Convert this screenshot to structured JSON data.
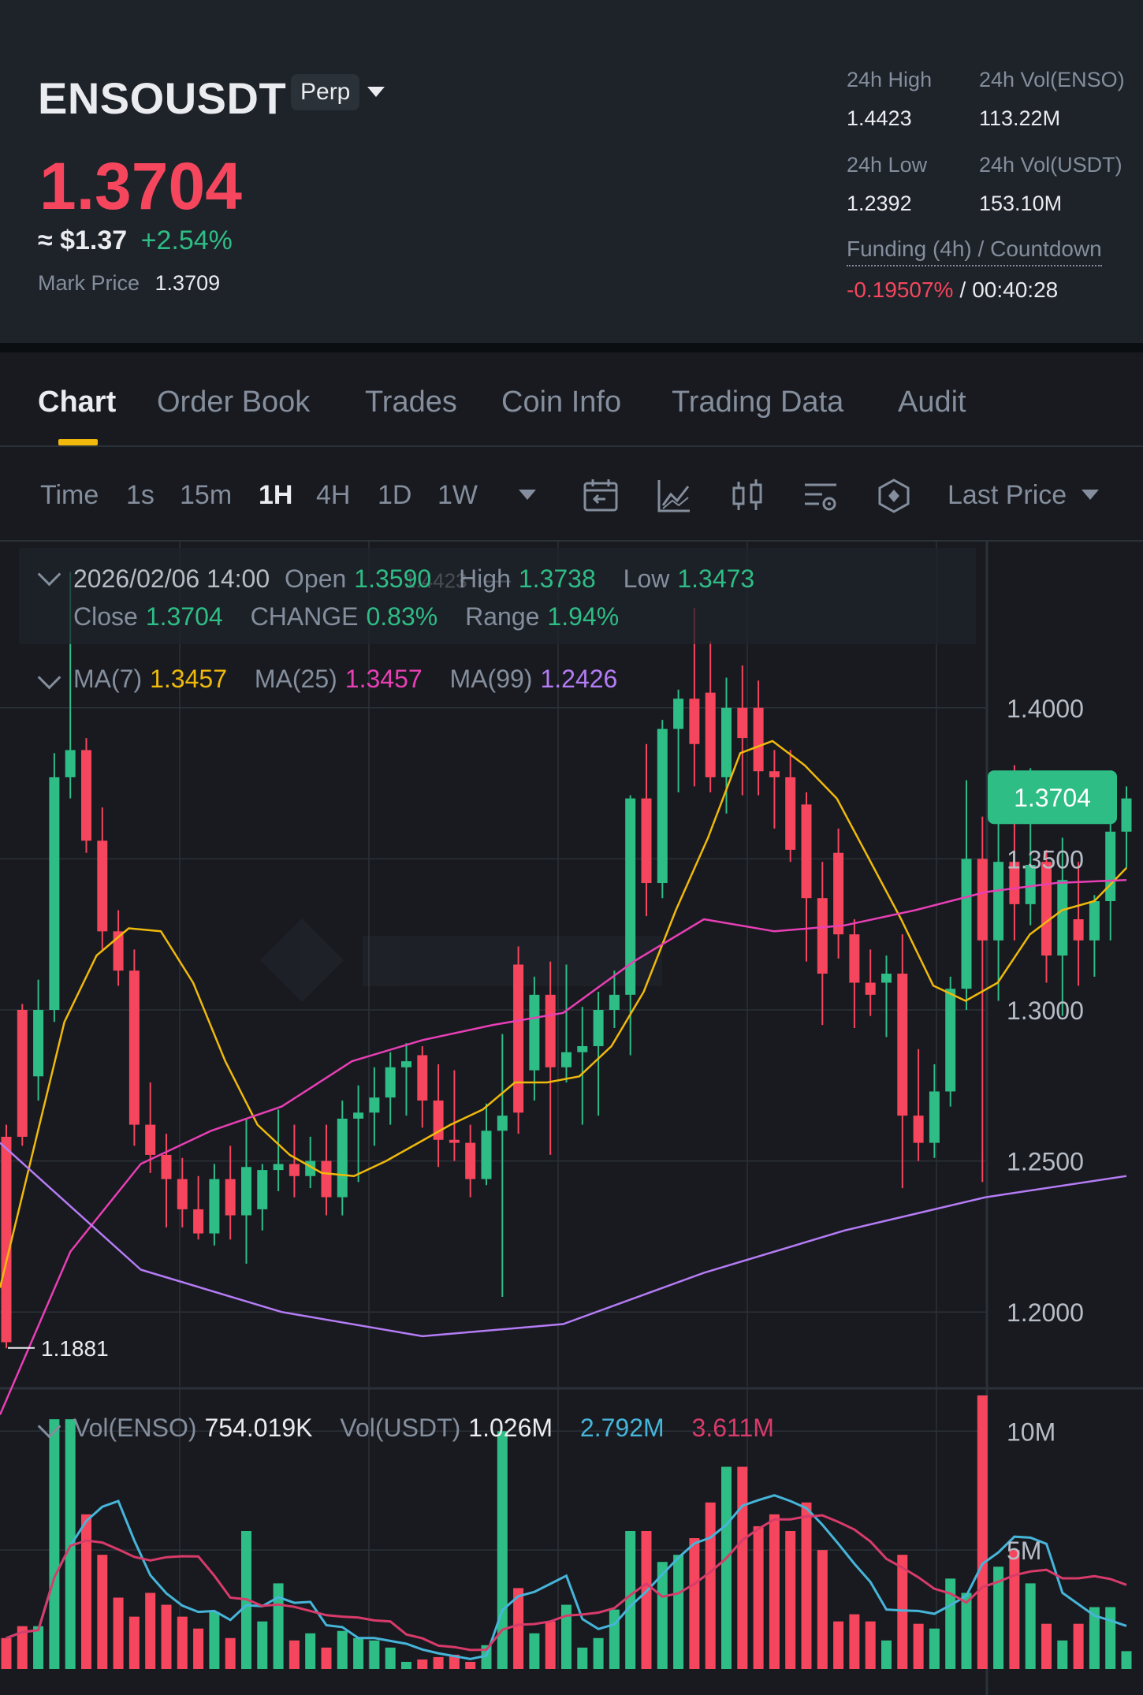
{
  "header": {
    "symbol": "ENSOUSDT",
    "contract_type": "Perp",
    "last_price": "1.3704",
    "usd_price": "≈ $1.37",
    "change_pct": "+2.54%",
    "mark_price_label": "Mark Price",
    "mark_price": "1.3709",
    "stats": {
      "high_label": "24h High",
      "high": "1.4423",
      "vol_base_label": "24h Vol(ENSO)",
      "vol_base": "113.22M",
      "low_label": "24h Low",
      "low": "1.2392",
      "vol_quote_label": "24h Vol(USDT)",
      "vol_quote": "153.10M"
    },
    "funding_label": "Funding (4h) / Countdown",
    "funding_rate": "-0.19507%",
    "funding_sep": "/",
    "countdown": "00:40:28"
  },
  "tabs": [
    {
      "label": "Chart",
      "active": true
    },
    {
      "label": "Order Book"
    },
    {
      "label": "Trades"
    },
    {
      "label": "Coin Info"
    },
    {
      "label": "Trading Data"
    },
    {
      "label": "Audit"
    }
  ],
  "toolbar": {
    "timeframes": [
      "Time",
      "1s",
      "15m",
      "1H",
      "4H",
      "1D",
      "1W"
    ],
    "active_timeframe": "1H",
    "icons": [
      "calendar-icon",
      "indicator-icon",
      "candle-type-icon",
      "chart-settings-icon",
      "depth-icon"
    ],
    "price_type": "Last Price"
  },
  "ohlc": {
    "datetime": "2026/02/06 14:00",
    "open_label": "Open",
    "open": "1.3590",
    "high_label": "High",
    "high": "1.3738",
    "low_label": "Low",
    "low": "1.3473",
    "close_label": "Close",
    "close": "1.3704",
    "change_label": "CHANGE",
    "change": "0.83%",
    "range_label": "Range",
    "range": "1.94%"
  },
  "ma": {
    "ma7_label": "MA(7)",
    "ma7": "1.3457",
    "ma25_label": "MA(25)",
    "ma25": "1.3457",
    "ma99_label": "MA(99)",
    "ma99": "1.2426"
  },
  "volume_legend": {
    "vol_base_label": "Vol(ENSO)",
    "vol_base": "754.019K",
    "vol_quote_label": "Vol(USDT)",
    "vol_quote": "1.026M",
    "vol_ma5": "2.792M",
    "vol_ma10": "3.611M"
  },
  "colors": {
    "up": "#2ebd85",
    "down": "#f6465d",
    "ma7": "#f0b90b",
    "ma25": "#e83fb4",
    "ma99": "#b57cf5",
    "vol_ma5": "#46b5d9",
    "vol_ma10": "#d83b6a",
    "accent": "#f0b90b"
  },
  "chart_data": {
    "type": "candlestick",
    "price_axis_ticks": [
      "1.4000",
      "1.3500",
      "1.3000",
      "1.2500",
      "1.2000"
    ],
    "price_range": [
      1.175,
      1.455
    ],
    "high_marker": "1.4423",
    "low_marker": "1.1881",
    "current_price_tag": "1.3704",
    "volume_axis_ticks": [
      "10M",
      "5M"
    ],
    "volume_range": [
      0,
      11.5
    ],
    "candles": [
      {
        "o": 1.258,
        "h": 1.262,
        "l": 1.188,
        "c": 1.19,
        "v": 1.3
      },
      {
        "o": 1.3,
        "h": 1.302,
        "l": 1.255,
        "c": 1.258,
        "v": 1.8
      },
      {
        "o": 1.278,
        "h": 1.31,
        "l": 1.27,
        "c": 1.3,
        "v": 1.8
      },
      {
        "o": 1.3,
        "h": 1.385,
        "l": 1.296,
        "c": 1.377,
        "v": 10.5
      },
      {
        "o": 1.377,
        "h": 1.445,
        "l": 1.37,
        "c": 1.386,
        "v": 10.5
      },
      {
        "o": 1.386,
        "h": 1.39,
        "l": 1.352,
        "c": 1.356,
        "v": 6.5
      },
      {
        "o": 1.356,
        "h": 1.367,
        "l": 1.32,
        "c": 1.326,
        "v": 4.8
      },
      {
        "o": 1.326,
        "h": 1.333,
        "l": 1.308,
        "c": 1.313,
        "v": 3.0
      },
      {
        "o": 1.313,
        "h": 1.32,
        "l": 1.255,
        "c": 1.262,
        "v": 2.2
      },
      {
        "o": 1.262,
        "h": 1.276,
        "l": 1.246,
        "c": 1.252,
        "v": 3.2
      },
      {
        "o": 1.252,
        "h": 1.259,
        "l": 1.228,
        "c": 1.244,
        "v": 2.7
      },
      {
        "o": 1.244,
        "h": 1.251,
        "l": 1.228,
        "c": 1.234,
        "v": 2.2
      },
      {
        "o": 1.234,
        "h": 1.245,
        "l": 1.224,
        "c": 1.226,
        "v": 1.7
      },
      {
        "o": 1.226,
        "h": 1.249,
        "l": 1.222,
        "c": 1.244,
        "v": 2.4
      },
      {
        "o": 1.244,
        "h": 1.255,
        "l": 1.224,
        "c": 1.232,
        "v": 1.3
      },
      {
        "o": 1.232,
        "h": 1.264,
        "l": 1.216,
        "c": 1.248,
        "v": 5.8
      },
      {
        "o": 1.234,
        "h": 1.249,
        "l": 1.227,
        "c": 1.247,
        "v": 2.0
      },
      {
        "o": 1.247,
        "h": 1.267,
        "l": 1.24,
        "c": 1.249,
        "v": 3.6
      },
      {
        "o": 1.249,
        "h": 1.262,
        "l": 1.238,
        "c": 1.245,
        "v": 1.2
      },
      {
        "o": 1.245,
        "h": 1.258,
        "l": 1.241,
        "c": 1.25,
        "v": 1.5
      },
      {
        "o": 1.25,
        "h": 1.262,
        "l": 1.232,
        "c": 1.238,
        "v": 0.9
      },
      {
        "o": 1.238,
        "h": 1.27,
        "l": 1.232,
        "c": 1.264,
        "v": 1.6
      },
      {
        "o": 1.264,
        "h": 1.275,
        "l": 1.243,
        "c": 1.266,
        "v": 1.3
      },
      {
        "o": 1.266,
        "h": 1.281,
        "l": 1.255,
        "c": 1.271,
        "v": 1.2
      },
      {
        "o": 1.271,
        "h": 1.286,
        "l": 1.262,
        "c": 1.281,
        "v": 0.9
      },
      {
        "o": 1.281,
        "h": 1.289,
        "l": 1.265,
        "c": 1.283,
        "v": 0.3
      },
      {
        "o": 1.285,
        "h": 1.288,
        "l": 1.261,
        "c": 1.27,
        "v": 0.4
      },
      {
        "o": 1.27,
        "h": 1.282,
        "l": 1.248,
        "c": 1.257,
        "v": 0.5
      },
      {
        "o": 1.257,
        "h": 1.28,
        "l": 1.25,
        "c": 1.256,
        "v": 0.6
      },
      {
        "o": 1.256,
        "h": 1.262,
        "l": 1.238,
        "c": 1.244,
        "v": 0.3
      },
      {
        "o": 1.244,
        "h": 1.269,
        "l": 1.242,
        "c": 1.26,
        "v": 1.0
      },
      {
        "o": 1.26,
        "h": 1.292,
        "l": 1.205,
        "c": 1.265,
        "v": 10.0
      },
      {
        "o": 1.315,
        "h": 1.321,
        "l": 1.259,
        "c": 1.266,
        "v": 3.4
      },
      {
        "o": 1.28,
        "h": 1.311,
        "l": 1.27,
        "c": 1.305,
        "v": 1.5
      },
      {
        "o": 1.305,
        "h": 1.316,
        "l": 1.252,
        "c": 1.281,
        "v": 2.0
      },
      {
        "o": 1.281,
        "h": 1.315,
        "l": 1.276,
        "c": 1.286,
        "v": 2.7
      },
      {
        "o": 1.286,
        "h": 1.301,
        "l": 1.262,
        "c": 1.288,
        "v": 0.9
      },
      {
        "o": 1.288,
        "h": 1.306,
        "l": 1.265,
        "c": 1.3,
        "v": 1.3
      },
      {
        "o": 1.3,
        "h": 1.313,
        "l": 1.294,
        "c": 1.305,
        "v": 2.5
      },
      {
        "o": 1.305,
        "h": 1.371,
        "l": 1.285,
        "c": 1.37,
        "v": 5.8
      },
      {
        "o": 1.37,
        "h": 1.388,
        "l": 1.331,
        "c": 1.342,
        "v": 5.8
      },
      {
        "o": 1.342,
        "h": 1.396,
        "l": 1.337,
        "c": 1.393,
        "v": 4.5
      },
      {
        "o": 1.393,
        "h": 1.406,
        "l": 1.372,
        "c": 1.403,
        "v": 4.8
      },
      {
        "o": 1.403,
        "h": 1.433,
        "l": 1.374,
        "c": 1.388,
        "v": 5.5
      },
      {
        "o": 1.405,
        "h": 1.422,
        "l": 1.372,
        "c": 1.377,
        "v": 7.0
      },
      {
        "o": 1.377,
        "h": 1.41,
        "l": 1.365,
        "c": 1.4,
        "v": 8.5
      },
      {
        "o": 1.4,
        "h": 1.414,
        "l": 1.371,
        "c": 1.39,
        "v": 8.5
      },
      {
        "o": 1.4,
        "h": 1.409,
        "l": 1.371,
        "c": 1.379,
        "v": 6.0
      },
      {
        "o": 1.379,
        "h": 1.386,
        "l": 1.36,
        "c": 1.377,
        "v": 6.5
      },
      {
        "o": 1.377,
        "h": 1.386,
        "l": 1.349,
        "c": 1.353,
        "v": 5.8
      },
      {
        "o": 1.368,
        "h": 1.372,
        "l": 1.316,
        "c": 1.337,
        "v": 7.0
      },
      {
        "o": 1.337,
        "h": 1.349,
        "l": 1.295,
        "c": 1.312,
        "v": 5.0
      },
      {
        "o": 1.352,
        "h": 1.36,
        "l": 1.317,
        "c": 1.325,
        "v": 2.0
      },
      {
        "o": 1.325,
        "h": 1.33,
        "l": 1.294,
        "c": 1.309,
        "v": 2.3
      },
      {
        "o": 1.309,
        "h": 1.32,
        "l": 1.298,
        "c": 1.305,
        "v": 2.0
      },
      {
        "o": 1.309,
        "h": 1.318,
        "l": 1.291,
        "c": 1.312,
        "v": 1.2
      },
      {
        "o": 1.312,
        "h": 1.325,
        "l": 1.241,
        "c": 1.265,
        "v": 4.8
      },
      {
        "o": 1.265,
        "h": 1.287,
        "l": 1.25,
        "c": 1.256,
        "v": 1.9
      },
      {
        "o": 1.256,
        "h": 1.282,
        "l": 1.251,
        "c": 1.273,
        "v": 1.7
      },
      {
        "o": 1.273,
        "h": 1.311,
        "l": 1.268,
        "c": 1.307,
        "v": 3.8
      },
      {
        "o": 1.307,
        "h": 1.376,
        "l": 1.3,
        "c": 1.35,
        "v": 3.2
      },
      {
        "o": 1.35,
        "h": 1.364,
        "l": 1.243,
        "c": 1.323,
        "v": 11.5
      },
      {
        "o": 1.323,
        "h": 1.366,
        "l": 1.303,
        "c": 1.349,
        "v": 4.3
      },
      {
        "o": 1.349,
        "h": 1.381,
        "l": 1.323,
        "c": 1.335,
        "v": 5.0
      },
      {
        "o": 1.335,
        "h": 1.38,
        "l": 1.328,
        "c": 1.348,
        "v": 3.6
      },
      {
        "o": 1.349,
        "h": 1.353,
        "l": 1.309,
        "c": 1.318,
        "v": 1.9
      },
      {
        "o": 1.318,
        "h": 1.357,
        "l": 1.298,
        "c": 1.343,
        "v": 1.2
      },
      {
        "o": 1.33,
        "h": 1.349,
        "l": 1.308,
        "c": 1.323,
        "v": 1.9
      },
      {
        "o": 1.323,
        "h": 1.338,
        "l": 1.311,
        "c": 1.336,
        "v": 2.6
      },
      {
        "o": 1.336,
        "h": 1.367,
        "l": 1.323,
        "c": 1.359,
        "v": 2.6
      },
      {
        "o": 1.359,
        "h": 1.374,
        "l": 1.347,
        "c": 1.37,
        "v": 0.75
      }
    ],
    "ma7_path_y": [
      1.208,
      1.252,
      1.296,
      1.318,
      1.327,
      1.326,
      1.309,
      1.283,
      1.262,
      1.252,
      1.246,
      1.245,
      1.25,
      1.256,
      1.262,
      1.267,
      1.276,
      1.276,
      1.278,
      1.288,
      1.306,
      1.333,
      1.357,
      1.385,
      1.389,
      1.381,
      1.37,
      1.35,
      1.33,
      1.308,
      1.303,
      1.309,
      1.325,
      1.333,
      1.336,
      1.347
    ],
    "ma25_path_y": [
      1.166,
      1.22,
      1.249,
      1.26,
      1.268,
      1.283,
      1.29,
      1.295,
      1.299,
      1.316,
      1.33,
      1.326,
      1.328,
      1.333,
      1.339,
      1.342,
      1.343
    ],
    "ma99_path_y": [
      1.256,
      1.214,
      1.2,
      1.192,
      1.196,
      1.213,
      1.227,
      1.238,
      1.245
    ]
  }
}
